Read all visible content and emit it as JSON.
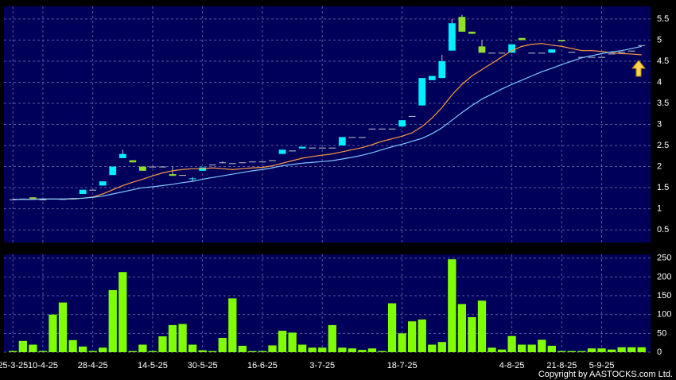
{
  "chart_data": {
    "type": "candlestick",
    "categories": [
      "25-3-25",
      null,
      null,
      "10-4-25",
      null,
      null,
      null,
      null,
      "28-4-25",
      null,
      null,
      null,
      null,
      null,
      "14-5-25",
      null,
      null,
      null,
      null,
      "30-5-25",
      null,
      null,
      null,
      null,
      null,
      "16-6-25",
      null,
      null,
      null,
      null,
      null,
      "3-7-25",
      null,
      null,
      null,
      null,
      null,
      null,
      null,
      "18-7-25",
      null,
      null,
      null,
      null,
      null,
      null,
      null,
      null,
      null,
      null,
      "4-8-25",
      null,
      null,
      null,
      null,
      "21-8-25",
      null,
      null,
      null,
      "5-9-25",
      null,
      null,
      null,
      null
    ],
    "open": [
      1.22,
      1.23,
      1.27,
      1.22,
      1.24,
      1.23,
      1.25,
      1.35,
      1.45,
      1.55,
      1.8,
      2.2,
      2.15,
      2.0,
      2.0,
      2.0,
      1.82,
      1.8,
      1.7,
      1.9,
      2.05,
      2.1,
      2.08,
      2.1,
      2.12,
      2.12,
      2.15,
      2.3,
      2.38,
      2.43,
      2.45,
      2.45,
      2.45,
      2.5,
      2.7,
      2.7,
      2.9,
      2.9,
      2.9,
      2.95,
      3.2,
      3.45,
      4.05,
      4.1,
      4.75,
      5.55,
      5.2,
      4.85,
      4.7,
      4.7,
      4.7,
      5.05,
      4.7,
      4.7,
      4.7,
      5.0,
      4.72,
      4.6,
      4.6,
      4.6,
      4.68,
      4.72,
      4.75,
      4.88
    ],
    "high": [
      1.22,
      1.24,
      1.27,
      1.22,
      1.24,
      1.23,
      1.25,
      1.45,
      1.45,
      1.65,
      2.0,
      2.4,
      2.15,
      2.0,
      2.0,
      2.0,
      2.0,
      1.8,
      1.75,
      1.98,
      2.05,
      2.12,
      2.08,
      2.1,
      2.12,
      2.12,
      2.15,
      2.4,
      2.38,
      2.47,
      2.45,
      2.45,
      2.45,
      2.7,
      2.7,
      2.7,
      2.9,
      2.9,
      2.9,
      3.1,
      3.2,
      4.1,
      4.15,
      4.65,
      5.5,
      5.6,
      5.2,
      5.0,
      4.7,
      4.7,
      4.9,
      5.05,
      4.7,
      4.7,
      4.78,
      5.0,
      4.72,
      4.6,
      4.6,
      4.6,
      4.68,
      4.72,
      4.75,
      4.88
    ],
    "low": [
      1.22,
      1.23,
      1.24,
      1.22,
      1.24,
      1.23,
      1.22,
      1.35,
      1.45,
      1.55,
      1.8,
      2.2,
      2.1,
      1.9,
      2.0,
      2.0,
      1.78,
      1.8,
      1.65,
      1.9,
      2.05,
      2.08,
      2.08,
      2.1,
      2.12,
      2.12,
      2.15,
      2.3,
      2.38,
      2.43,
      2.45,
      2.45,
      2.45,
      2.5,
      2.7,
      2.7,
      2.9,
      2.9,
      2.9,
      2.95,
      3.2,
      3.45,
      4.05,
      4.1,
      4.75,
      5.2,
      5.15,
      4.7,
      4.7,
      4.7,
      4.7,
      5.0,
      4.7,
      4.7,
      4.7,
      4.97,
      4.72,
      4.6,
      4.6,
      4.6,
      4.68,
      4.72,
      4.75,
      4.88
    ],
    "close": [
      1.22,
      1.24,
      1.24,
      1.22,
      1.24,
      1.23,
      1.22,
      1.45,
      1.45,
      1.65,
      2.0,
      2.3,
      2.1,
      1.9,
      2.0,
      2.0,
      1.78,
      1.8,
      1.72,
      1.98,
      2.05,
      2.1,
      2.08,
      2.1,
      2.12,
      2.12,
      2.15,
      2.4,
      2.38,
      2.47,
      2.45,
      2.45,
      2.45,
      2.7,
      2.7,
      2.7,
      2.9,
      2.9,
      2.9,
      3.1,
      3.2,
      4.1,
      4.15,
      4.5,
      5.4,
      5.2,
      5.15,
      4.7,
      4.7,
      4.7,
      4.9,
      5.0,
      4.7,
      4.7,
      4.78,
      4.97,
      4.72,
      4.6,
      4.6,
      4.6,
      4.68,
      4.72,
      4.75,
      4.88
    ],
    "up_color": "#00f0ff",
    "down_color": "#8ee02a",
    "lines": [
      {
        "color": "#ff9a40",
        "values": [
          1.22,
          1.22,
          1.23,
          1.23,
          1.23,
          1.23,
          1.23,
          1.25,
          1.28,
          1.35,
          1.45,
          1.55,
          1.63,
          1.7,
          1.78,
          1.85,
          1.9,
          1.93,
          1.95,
          1.95,
          1.97,
          1.95,
          1.93,
          1.95,
          1.97,
          1.98,
          2.02,
          2.08,
          2.14,
          2.2,
          2.24,
          2.27,
          2.3,
          2.35,
          2.4,
          2.45,
          2.52,
          2.6,
          2.66,
          2.72,
          2.8,
          2.95,
          3.15,
          3.4,
          3.7,
          3.95,
          4.15,
          4.3,
          4.45,
          4.6,
          4.75,
          4.85,
          4.9,
          4.92,
          4.88,
          4.85,
          4.8,
          4.75,
          4.75,
          4.73,
          4.7,
          4.68,
          4.67,
          4.65
        ]
      },
      {
        "color": "#7ec8ff",
        "values": [
          1.22,
          1.22,
          1.22,
          1.23,
          1.23,
          1.23,
          1.24,
          1.25,
          1.27,
          1.3,
          1.35,
          1.4,
          1.45,
          1.5,
          1.52,
          1.55,
          1.58,
          1.62,
          1.65,
          1.7,
          1.74,
          1.78,
          1.82,
          1.86,
          1.9,
          1.93,
          1.97,
          2.02,
          2.05,
          2.08,
          2.1,
          2.12,
          2.14,
          2.18,
          2.22,
          2.27,
          2.33,
          2.4,
          2.47,
          2.53,
          2.6,
          2.67,
          2.78,
          2.92,
          3.1,
          3.28,
          3.45,
          3.6,
          3.72,
          3.84,
          3.95,
          4.05,
          4.15,
          4.25,
          4.33,
          4.42,
          4.5,
          4.58,
          4.63,
          4.68,
          4.72,
          4.75,
          4.8,
          4.85
        ]
      }
    ],
    "ylim": [
      0.2,
      5.8
    ],
    "yticks": [
      0.5,
      1,
      1.5,
      2,
      2.5,
      3,
      3.5,
      4,
      4.5,
      5,
      5.5
    ],
    "volume": {
      "color": "#80ff00",
      "values": [
        3,
        30,
        20,
        3,
        100,
        132,
        32,
        15,
        3,
        12,
        165,
        213,
        3,
        20,
        3,
        42,
        72,
        75,
        20,
        5,
        3,
        38,
        143,
        17,
        3,
        3,
        18,
        57,
        52,
        20,
        12,
        12,
        72,
        12,
        10,
        6,
        10,
        3,
        130,
        50,
        82,
        87,
        20,
        27,
        247,
        128,
        93,
        137,
        12,
        7,
        43,
        20,
        20,
        33,
        17,
        3,
        3,
        3,
        10,
        10,
        7,
        13,
        13,
        13
      ],
      "ylim": [
        0,
        260
      ],
      "yticks": [
        0,
        50,
        100,
        150,
        200,
        250
      ]
    },
    "copyright": "Copyright by AASTOCKS.com Ltd."
  }
}
